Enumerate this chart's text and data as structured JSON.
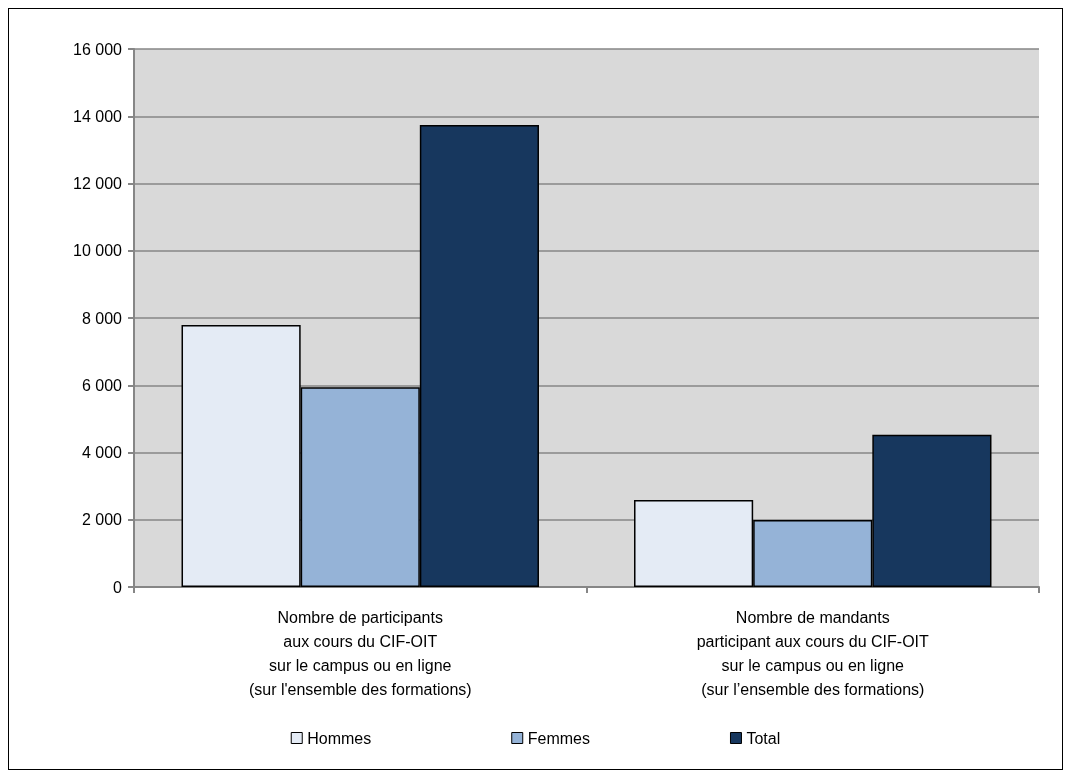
{
  "chart_data": {
    "type": "bar",
    "categories": [
      "Nombre de participants\naux cours du CIF-OIT\nsur le campus ou en ligne\n(sur l'ensemble des formations)",
      "Nombre de mandants\nparticipant aux cours du CIF-OIT\nsur le campus ou en ligne\n(sur l’ensemble des formations)"
    ],
    "series": [
      {
        "name": "Hommes",
        "color": "#e4ebf5",
        "values": [
          7790,
          2590
        ]
      },
      {
        "name": "Femmes",
        "color": "#95b3d7",
        "values": [
          5940,
          1990
        ]
      },
      {
        "name": "Total",
        "color": "#17375e",
        "values": [
          13740,
          4530
        ]
      }
    ],
    "ylim": [
      0,
      16000
    ],
    "yticks": [
      0,
      {
        "value": 2000,
        "label": "2 000"
      },
      {
        "value": 4000,
        "label": "4 000"
      },
      {
        "value": 6000,
        "label": "6 000"
      },
      {
        "value": 8000,
        "label": "8 000"
      },
      {
        "value": 10000,
        "label": "10 000"
      },
      {
        "value": 12000,
        "label": "12 000"
      },
      {
        "value": 14000,
        "label": "14 000"
      },
      {
        "value": 16000,
        "label": "16 000"
      }
    ],
    "grid": "y",
    "legend": "bottom"
  }
}
